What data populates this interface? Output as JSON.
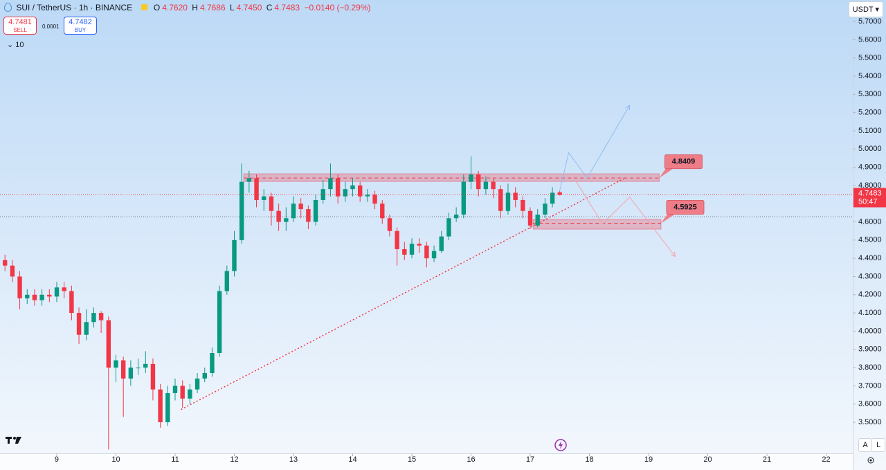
{
  "header": {
    "symbol": "SUI / TetherUS · 1h · BINANCE",
    "o_label": "O",
    "open": "4.7620",
    "h_label": "H",
    "high": "4.7686",
    "l_label": "L",
    "low": "4.7450",
    "c_label": "C",
    "close": "4.7483",
    "change": "−0.0140 (−0.29%)",
    "sell_price": "4.7481",
    "sell_label": "SELL",
    "spread": "0.0001",
    "buy_price": "4.7482",
    "buy_label": "BUY",
    "indicator_count": "10",
    "currency": "USDT",
    "scale_buttons": [
      "A",
      "L"
    ]
  },
  "chart_data": {
    "type": "candlestick",
    "up_color": "#089981",
    "down_color": "#f23645",
    "x": [
      8.125,
      8.25,
      8.375,
      8.5,
      8.625,
      8.75,
      8.875,
      9.0,
      9.125,
      9.25,
      9.375,
      9.5,
      9.625,
      9.75,
      9.875,
      10.0,
      10.125,
      10.25,
      10.375,
      10.5,
      10.625,
      10.75,
      10.875,
      11.0,
      11.125,
      11.25,
      11.375,
      11.5,
      11.625,
      11.75,
      11.875,
      12.0,
      12.125,
      12.25,
      12.375,
      12.5,
      12.625,
      12.75,
      12.875,
      13.0,
      13.125,
      13.25,
      13.375,
      13.5,
      13.625,
      13.75,
      13.875,
      14.0,
      14.125,
      14.25,
      14.375,
      14.5,
      14.625,
      14.75,
      14.875,
      15.0,
      15.125,
      15.25,
      15.375,
      15.5,
      15.625,
      15.75,
      15.875,
      16.0,
      16.125,
      16.25,
      16.375,
      16.5,
      16.625,
      16.75,
      16.875,
      17.0,
      17.125,
      17.25,
      17.375,
      17.5
    ],
    "open": [
      4.39,
      4.36,
      4.3,
      4.18,
      4.2,
      4.17,
      4.2,
      4.19,
      4.24,
      4.22,
      4.1,
      3.98,
      4.05,
      4.1,
      4.06,
      3.8,
      3.84,
      3.74,
      3.8,
      3.8,
      3.82,
      3.68,
      3.5,
      3.66,
      3.7,
      3.63,
      3.68,
      3.74,
      3.77,
      3.88,
      4.22,
      4.33,
      4.5,
      4.82,
      4.84,
      4.72,
      4.74,
      4.66,
      4.6,
      4.62,
      4.7,
      4.67,
      4.6,
      4.72,
      4.78,
      4.84,
      4.74,
      4.78,
      4.8,
      4.74,
      4.75,
      4.7,
      4.62,
      4.55,
      4.45,
      4.42,
      4.48,
      4.47,
      4.4,
      4.44,
      4.52,
      4.62,
      4.64,
      4.82,
      4.86,
      4.78,
      4.82,
      4.78,
      4.66,
      4.76,
      4.72,
      4.66,
      4.58,
      4.64,
      4.7,
      4.762
    ],
    "high": [
      4.42,
      4.39,
      4.33,
      4.23,
      4.23,
      4.23,
      4.23,
      4.27,
      4.27,
      4.25,
      4.13,
      4.12,
      4.13,
      4.11,
      4.08,
      3.87,
      3.86,
      3.84,
      3.85,
      3.89,
      3.85,
      3.71,
      3.7,
      3.74,
      3.73,
      3.71,
      3.77,
      3.8,
      3.91,
      4.25,
      4.36,
      4.55,
      4.92,
      4.88,
      4.86,
      4.78,
      4.76,
      4.7,
      4.68,
      4.74,
      4.73,
      4.69,
      4.75,
      4.83,
      4.92,
      4.86,
      4.82,
      4.84,
      4.82,
      4.78,
      4.77,
      4.72,
      4.64,
      4.57,
      4.49,
      4.51,
      4.51,
      4.49,
      4.47,
      4.55,
      4.65,
      4.68,
      4.86,
      4.96,
      4.88,
      4.85,
      4.84,
      4.8,
      4.81,
      4.79,
      4.74,
      4.68,
      4.67,
      4.73,
      4.79,
      4.7686
    ],
    "low": [
      4.33,
      4.27,
      4.12,
      4.15,
      4.14,
      4.14,
      4.16,
      4.16,
      4.18,
      4.06,
      3.93,
      3.95,
      4.02,
      3.99,
      3.35,
      3.72,
      3.53,
      3.7,
      3.76,
      3.77,
      3.62,
      3.47,
      3.48,
      3.62,
      3.58,
      3.6,
      3.66,
      3.72,
      3.75,
      3.86,
      4.2,
      4.3,
      4.48,
      4.76,
      4.68,
      4.66,
      4.58,
      4.55,
      4.55,
      4.6,
      4.62,
      4.56,
      4.58,
      4.7,
      4.74,
      4.7,
      4.71,
      4.74,
      4.71,
      4.71,
      4.67,
      4.59,
      4.52,
      4.36,
      4.39,
      4.4,
      4.43,
      4.35,
      4.38,
      4.43,
      4.5,
      4.6,
      4.62,
      4.78,
      4.74,
      4.75,
      4.73,
      4.62,
      4.64,
      4.68,
      4.62,
      4.56,
      4.57,
      4.62,
      4.68,
      4.745
    ],
    "close": [
      4.36,
      4.3,
      4.18,
      4.2,
      4.17,
      4.2,
      4.19,
      4.24,
      4.22,
      4.1,
      3.98,
      4.05,
      4.1,
      4.06,
      3.8,
      3.84,
      3.74,
      3.8,
      3.8,
      3.82,
      3.68,
      3.5,
      3.66,
      3.7,
      3.63,
      3.68,
      3.74,
      3.77,
      3.88,
      4.22,
      4.33,
      4.5,
      4.82,
      4.84,
      4.72,
      4.74,
      4.66,
      4.6,
      4.62,
      4.7,
      4.67,
      4.6,
      4.72,
      4.78,
      4.84,
      4.74,
      4.78,
      4.8,
      4.74,
      4.75,
      4.7,
      4.62,
      4.55,
      4.45,
      4.42,
      4.48,
      4.47,
      4.4,
      4.44,
      4.52,
      4.62,
      4.64,
      4.82,
      4.86,
      4.78,
      4.82,
      4.78,
      4.66,
      4.76,
      4.72,
      4.66,
      4.58,
      4.64,
      4.7,
      4.76,
      4.7483
    ],
    "xlim": [
      8.041,
      22.45
    ],
    "ylim": [
      3.329,
      5.818
    ],
    "xticks": [
      9,
      10,
      11,
      12,
      13,
      14,
      15,
      16,
      17,
      18,
      19,
      20,
      21,
      22
    ],
    "yticks": [
      {
        "value": 3.5,
        "label": "3.5000"
      },
      {
        "value": 3.6,
        "label": "3.6000"
      },
      {
        "value": 3.7,
        "label": "3.7000"
      },
      {
        "value": 3.8,
        "label": "3.8000"
      },
      {
        "value": 3.9,
        "label": "3.9000"
      },
      {
        "value": 4.0,
        "label": "4.0000"
      },
      {
        "value": 4.1,
        "label": "4.1000"
      },
      {
        "value": 4.2,
        "label": "4.2000"
      },
      {
        "value": 4.3,
        "label": "4.3000"
      },
      {
        "value": 4.4,
        "label": "4.4000"
      },
      {
        "value": 4.5,
        "label": "4.5000"
      },
      {
        "value": 4.6,
        "label": "4.6000"
      },
      {
        "value": 4.7,
        "label": "4.7000"
      },
      {
        "value": 4.8,
        "label": "4.8000"
      },
      {
        "value": 4.9,
        "label": "4.9000"
      },
      {
        "value": 5.0,
        "label": "5.0000"
      },
      {
        "value": 5.1,
        "label": "5.1000"
      },
      {
        "value": 5.2,
        "label": "5.2000"
      },
      {
        "value": 5.3,
        "label": "5.3000"
      },
      {
        "value": 5.4,
        "label": "5.4000"
      },
      {
        "value": 5.5,
        "label": "5.5000"
      },
      {
        "value": 5.6,
        "label": "5.6000"
      },
      {
        "value": 5.7,
        "label": "5.7000"
      }
    ],
    "last_price": {
      "value": 4.7483,
      "label": "4.7483",
      "countdown": "50:47",
      "color": "#f23645"
    },
    "reference_line": 4.628,
    "zones": [
      {
        "value": 4.8409,
        "label": "4.8409",
        "x": [
          12.16,
          19.18
        ],
        "y": [
          4.822,
          4.864
        ],
        "label_x": 18.0,
        "label_y": 4.93
      },
      {
        "value": 4.5925,
        "label": "4.5925",
        "x": [
          17.05,
          19.21
        ],
        "y": [
          4.56,
          4.613
        ],
        "label_x": 18.0,
        "label_y": 4.68
      }
    ],
    "trendline": {
      "x": [
        11.1,
        18.6
      ],
      "y": [
        3.57,
        4.84
      ]
    },
    "projections": [
      {
        "x": [
          17.49,
          17.65,
          17.96,
          18.68
        ],
        "y": [
          4.76,
          4.98,
          4.84,
          5.24
        ],
        "color": "#8fbdf0"
      },
      {
        "x": [
          17.78,
          18.22,
          18.68,
          19.45
        ],
        "y": [
          4.82,
          4.59,
          4.735,
          4.41
        ],
        "color": "#f3a3ab"
      }
    ]
  }
}
